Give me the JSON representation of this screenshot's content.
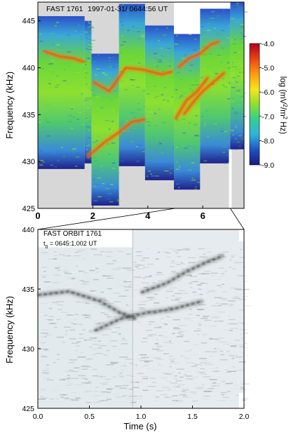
{
  "chart_data": [
    {
      "type": "heatmap",
      "title": "FAST 1761",
      "subtitle": "1997-01-31/ 0644:56 UT",
      "xlabel": "",
      "ylabel": "Frequency (kHz)",
      "xlim": [
        0,
        7.5
      ],
      "ylim": [
        425,
        447
      ],
      "x_ticks": [
        "0",
        "2",
        "4",
        "6"
      ],
      "y_ticks": [
        "425",
        "430",
        "435",
        "440",
        "445"
      ],
      "colorbar": {
        "label": "log (mV²/m² Hz)",
        "range": [
          -9.0,
          -4.0
        ],
        "ticks": [
          "-4.0",
          "-5.0",
          "-6.0",
          "-7.0",
          "-8.0",
          "-9.0"
        ]
      },
      "bands": [
        {
          "x": [
            0.0,
            1.7
          ],
          "f": [
            429.2,
            445.5
          ]
        },
        {
          "x": [
            1.7,
            1.95
          ],
          "f": [
            429.8,
            445.0
          ]
        },
        {
          "x": [
            1.95,
            2.95
          ],
          "f": [
            425.3,
            441.5
          ]
        },
        {
          "x": [
            2.95,
            3.9
          ],
          "f": [
            429.5,
            446.8
          ]
        },
        {
          "x": [
            3.9,
            4.95
          ],
          "f": [
            428.0,
            444.5
          ]
        },
        {
          "x": [
            4.95,
            5.9
          ],
          "f": [
            427.0,
            443.6
          ]
        },
        {
          "x": [
            5.9,
            7.0
          ],
          "f": [
            429.8,
            446.3
          ]
        },
        {
          "x": [
            7.0,
            7.5
          ],
          "f": [
            431.3,
            447.0
          ]
        }
      ],
      "zoom_range": [
        5.0,
        7.0
      ]
    },
    {
      "type": "heatmap",
      "title": "FAST  ORBIT 1761",
      "subtitle": "t0 = 0645:1.002 UT",
      "xlabel": "Time (s)",
      "ylabel": "Frequency (kHz)",
      "xlim": [
        0.0,
        2.0
      ],
      "ylim": [
        425,
        440
      ],
      "x_ticks": [
        "0.0",
        "0.5",
        "1.0",
        "1.5",
        "2.0"
      ],
      "y_ticks": [
        "425",
        "430",
        "435",
        "440"
      ],
      "emission_ridges": [
        {
          "t": [
            0.0,
            0.3,
            0.6,
            0.8,
            0.95
          ],
          "f": [
            434.5,
            434.8,
            434.0,
            433.0,
            432.5
          ]
        },
        {
          "t": [
            1.0,
            1.25,
            1.45,
            1.65,
            1.8
          ],
          "f": [
            434.7,
            435.5,
            436.5,
            437.3,
            437.8
          ]
        },
        {
          "t": [
            0.55,
            0.8,
            1.05,
            1.3,
            1.6
          ],
          "f": [
            431.5,
            432.5,
            433.0,
            433.3,
            434.0
          ]
        }
      ]
    }
  ],
  "top": {
    "title": "FAST 1761",
    "date": "1997-01-31/ 0644:56 UT",
    "ylabel": "Frequency (kHz)",
    "cbar_label_main": "log (mV",
    "cbar_sup1": "2",
    "cbar_label_mid": "/m",
    "cbar_sup2": "2",
    "cbar_label_end": " Hz)"
  },
  "bottom": {
    "title": "FAST  ORBIT 1761",
    "t0_prefix": "t",
    "t0_sub": "0",
    "t0_value": " = 0645:1.002 UT",
    "ylabel": "Frequency (kHz)",
    "xlabel": "Time (s)"
  }
}
